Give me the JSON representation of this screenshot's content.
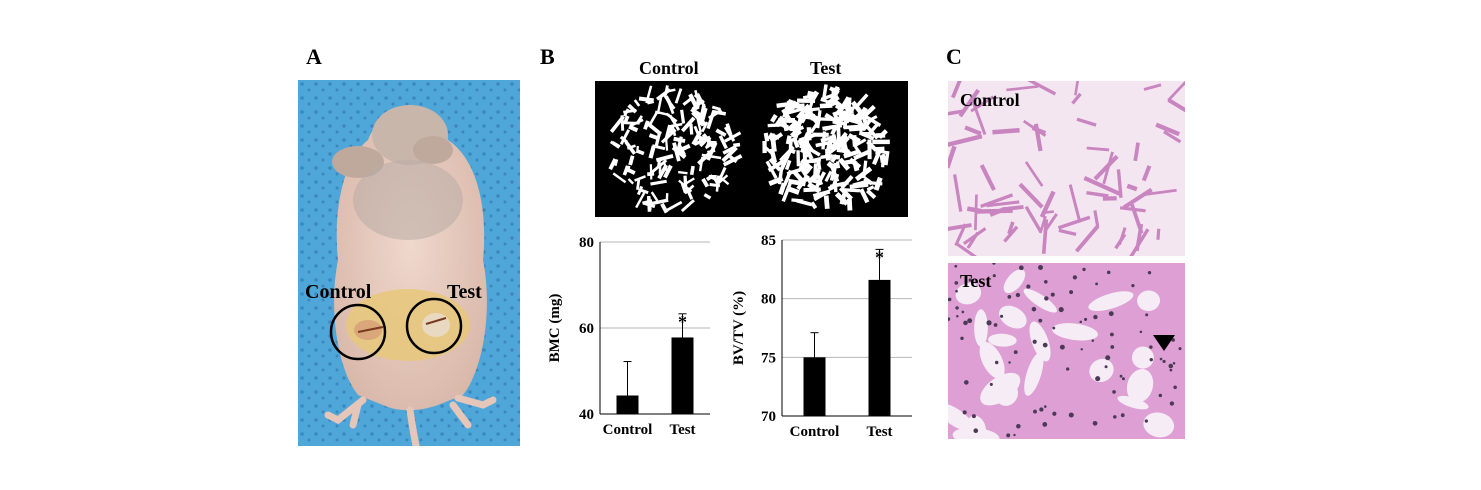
{
  "panels": {
    "a": {
      "letter": "A",
      "label_control": "Control",
      "label_test": "Test"
    },
    "b": {
      "letter": "B",
      "ct_control_label": "Control",
      "ct_test_label": "Test"
    },
    "c": {
      "letter": "C",
      "control_label": "Control",
      "test_label": "Test"
    }
  },
  "colors": {
    "bar": "#000000",
    "grid": "#b4b4b4",
    "drape": "#4fa6d8",
    "histo_pink": "#e7b3de",
    "histo_white": "#f6ecf5"
  },
  "chart_data": [
    {
      "type": "bar",
      "categories": [
        "Control",
        "Test"
      ],
      "values": [
        44.3,
        57.8
      ],
      "errors": [
        7.9,
        5.5
      ],
      "significance": [
        "",
        "*"
      ],
      "ylabel": "BMC (mg)",
      "yticks": [
        "40",
        "60",
        "80"
      ],
      "ylim": [
        40,
        80
      ],
      "grid": true
    },
    {
      "type": "bar",
      "categories": [
        "Control",
        "Test"
      ],
      "values": [
        75.0,
        81.6
      ],
      "errors": [
        2.1,
        2.6
      ],
      "significance": [
        "",
        "*"
      ],
      "ylabel": "BV/TV (%)",
      "yticks": [
        "70",
        "75",
        "80",
        "85"
      ],
      "ylim": [
        70,
        85
      ],
      "grid": true
    }
  ]
}
